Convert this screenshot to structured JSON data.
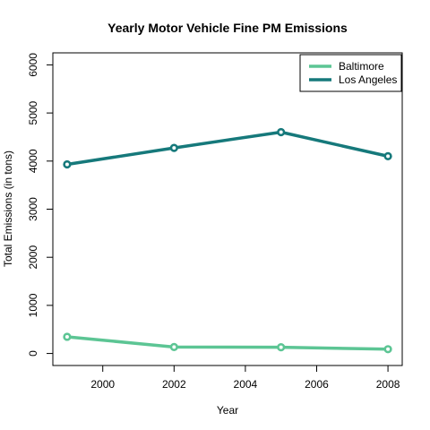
{
  "chart_data": {
    "type": "line",
    "title": "Yearly Motor Vehicle Fine PM Emissions",
    "xlabel": "Year",
    "ylabel": "Total Emissions (in tons)",
    "x": [
      1999,
      2002,
      2005,
      2008
    ],
    "xlim": [
      1998.6,
      2008.4
    ],
    "ylim": [
      -250,
      6250
    ],
    "xticks": [
      2000,
      2002,
      2004,
      2006,
      2008
    ],
    "yticks": [
      0,
      1000,
      2000,
      3000,
      4000,
      5000,
      6000
    ],
    "legend_position": "top-right",
    "grid": false,
    "series": [
      {
        "name": "Baltimore",
        "color": "#5cc594",
        "values": [
          347,
          134,
          130,
          89
        ]
      },
      {
        "name": "Los Angeles",
        "color": "#16797b",
        "values": [
          3931,
          4274,
          4602,
          4101
        ]
      }
    ]
  }
}
